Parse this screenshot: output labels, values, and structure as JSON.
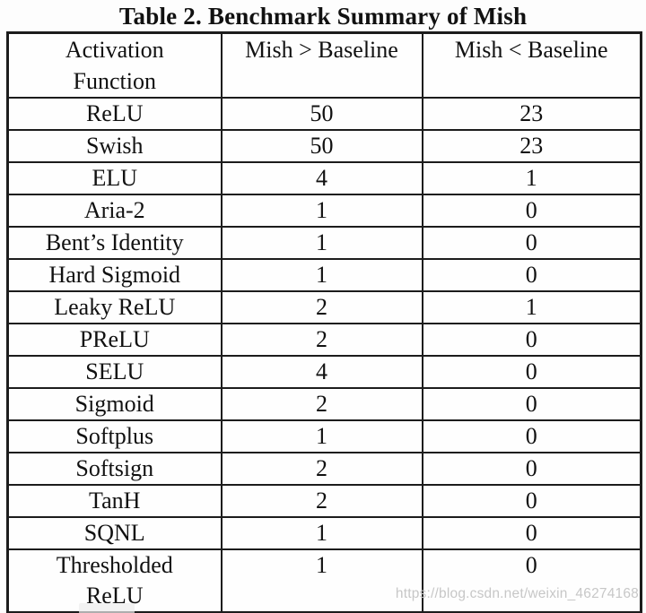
{
  "caption": "Table 2. Benchmark Summary of Mish",
  "table": {
    "columns": [
      "Activation\nFunction",
      "Mish > Baseline",
      "Mish < Baseline"
    ],
    "rows": [
      {
        "name": "ReLU",
        "gt": "50",
        "lt": "23"
      },
      {
        "name": "Swish",
        "gt": "50",
        "lt": "23"
      },
      {
        "name": "ELU",
        "gt": "4",
        "lt": "1"
      },
      {
        "name": "Aria-2",
        "gt": "1",
        "lt": "0"
      },
      {
        "name": "Bent’s Identity",
        "gt": "1",
        "lt": "0"
      },
      {
        "name": "Hard Sigmoid",
        "gt": "1",
        "lt": "0"
      },
      {
        "name": "Leaky ReLU",
        "gt": "2",
        "lt": "1"
      },
      {
        "name": "PReLU",
        "gt": "2",
        "lt": "0"
      },
      {
        "name": "SELU",
        "gt": "4",
        "lt": "0"
      },
      {
        "name": "Sigmoid",
        "gt": "2",
        "lt": "0"
      },
      {
        "name": "Softplus",
        "gt": "1",
        "lt": "0"
      },
      {
        "name": "Softsign",
        "gt": "2",
        "lt": "0"
      },
      {
        "name": "TanH",
        "gt": "2",
        "lt": "0"
      },
      {
        "name": "SQNL",
        "gt": "1",
        "lt": "0"
      },
      {
        "name": "Thresholded\nReLU",
        "gt": "1",
        "lt": "0"
      }
    ]
  },
  "watermark": "https://blog.csdn.net/weixin_46274168",
  "colors": {
    "border": "#1c1c1c",
    "background": "#fdfdfd",
    "watermark_gray": "#c7c7c7"
  }
}
